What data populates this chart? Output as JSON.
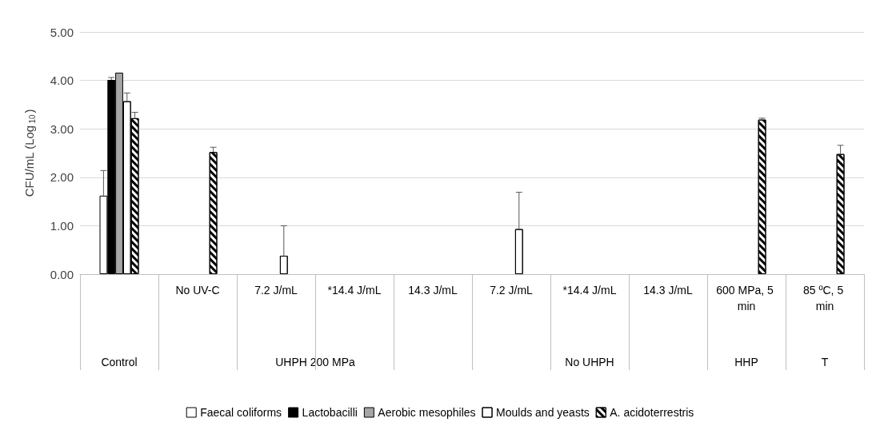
{
  "chart_data": {
    "type": "bar",
    "ylabel": "CFU/mL (Log$_{10}$)",
    "categories": [
      null,
      "No UV-C",
      "7.2 J/mL",
      "*14.4 J/mL",
      "14.3 J/mL",
      "7.2 J/mL",
      "*14.4 J/mL",
      "14.3 J/mL",
      "600 MPa, 5 min",
      "85 ºC, 5 min"
    ],
    "series": [
      {
        "name": "Faecal coliforms",
        "color": "#ffffff",
        "values": [
          1.62,
          0,
          0,
          0,
          0,
          0,
          0,
          0,
          0,
          0
        ],
        "errors": [
          [
            1.62,
            2.14
          ],
          null,
          null,
          null,
          null,
          null,
          null,
          null,
          null,
          null
        ]
      },
      {
        "name": "Lactobacilli",
        "color": "#000000",
        "values": [
          4.01,
          0,
          0,
          0,
          0,
          0,
          0,
          0,
          0,
          0
        ],
        "errors": [
          [
            4.01,
            4.06
          ],
          null,
          null,
          null,
          null,
          null,
          null,
          null,
          null,
          null
        ]
      },
      {
        "name": "Aerobic mesophiles",
        "color": "#a6a6a6",
        "values": [
          4.16,
          0,
          0,
          0,
          0,
          0,
          0,
          0,
          0,
          0
        ]
      },
      {
        "name": "Moulds and yeasts",
        "color": "#ffffff",
        "values": [
          3.57,
          0,
          0.38,
          0,
          0,
          0.93,
          0,
          0,
          0,
          0
        ],
        "errors": [
          [
            3.57,
            3.74
          ],
          null,
          [
            0.38,
            1.0
          ],
          null,
          null,
          [
            0.93,
            1.69
          ],
          null,
          null,
          null,
          null
        ]
      },
      {
        "name": "A. acidoterrestris",
        "color": "#ffffff",
        "values": [
          3.22,
          2.52,
          0,
          0,
          0,
          0,
          0,
          0,
          3.19,
          2.48
        ],
        "errors": [
          [
            3.22,
            3.34
          ],
          [
            2.52,
            2.62
          ],
          null,
          null,
          null,
          null,
          null,
          null,
          [
            3.19,
            3.22
          ],
          [
            2.48,
            2.66
          ]
        ]
      }
    ],
    "annotations": [
      "Control",
      "UHPH 200 MPa",
      "No UHPH",
      "HHP",
      "T"
    ],
    "ylim": [
      0,
      5
    ],
    "yticks": [
      {
        "value": 0,
        "label": "0.00"
      },
      {
        "value": 1,
        "label": "1.00"
      },
      {
        "value": 2,
        "label": "2.00"
      },
      {
        "value": 3,
        "label": "3.00"
      },
      {
        "value": 4,
        "label": "4.00"
      },
      {
        "value": 5,
        "label": "5.00"
      }
    ],
    "grid": "y",
    "legend": "bottom"
  }
}
